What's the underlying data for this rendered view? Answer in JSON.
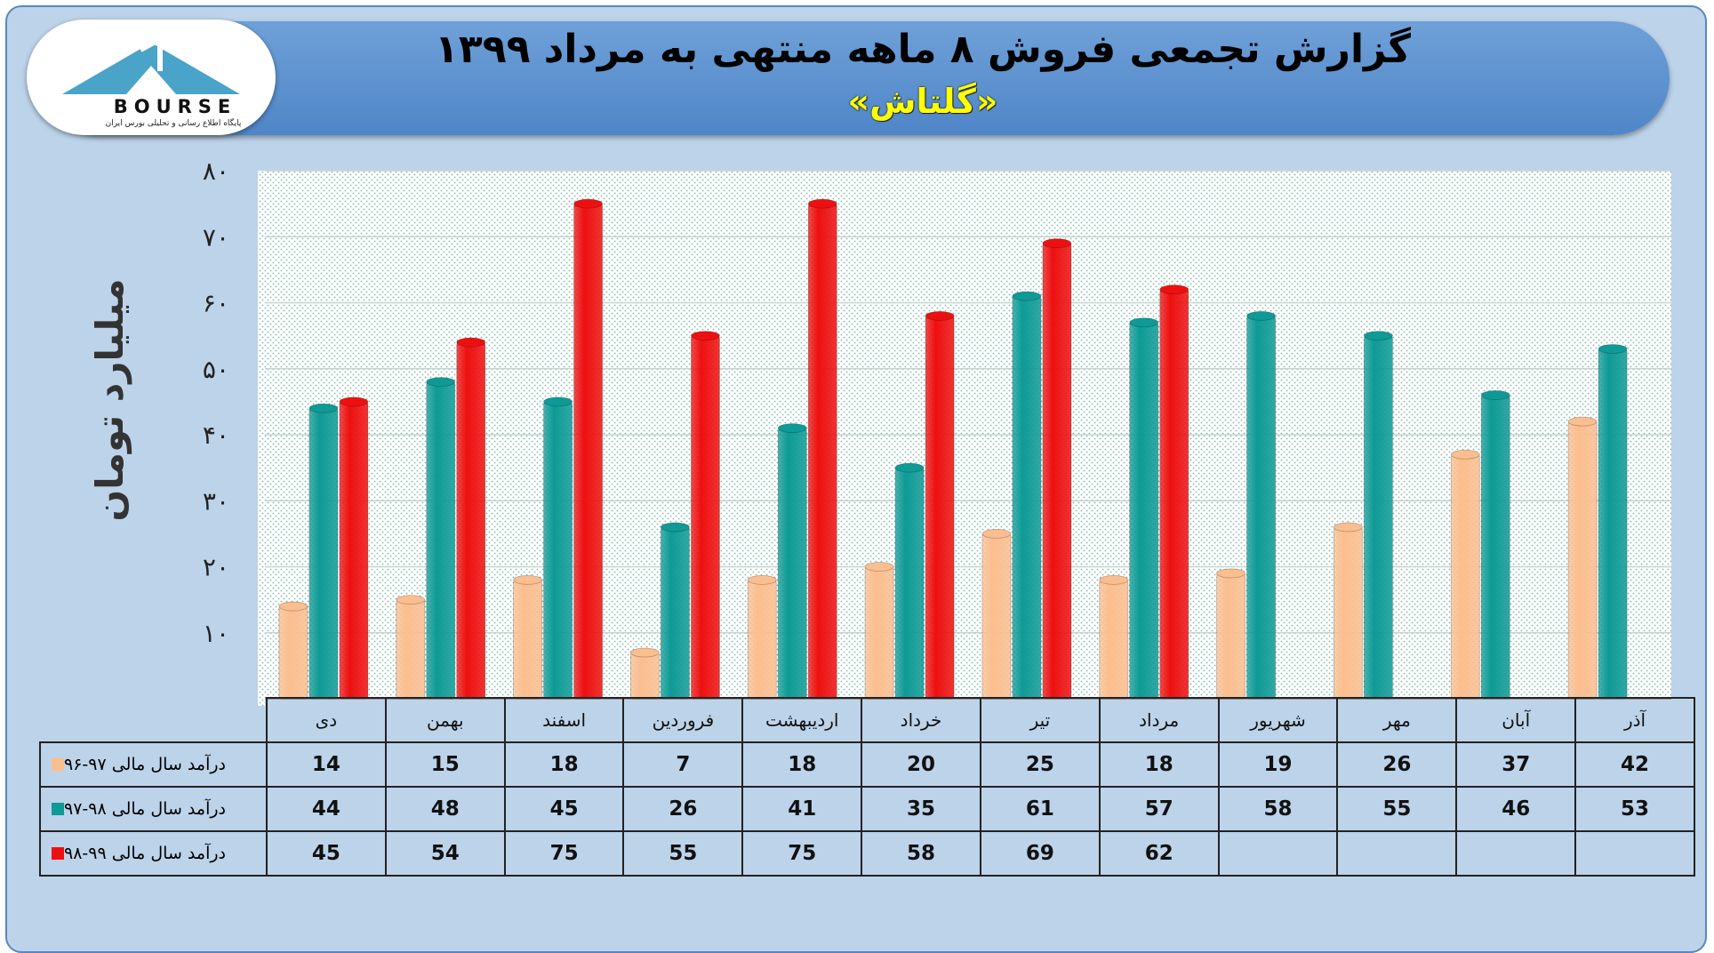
{
  "header": {
    "title": "گزارش تجمعی فروش ۸ ماهه منتهی به مرداد ۱۳۹۹",
    "subtitle": "«گلتاش»",
    "logo_text": "BOURSE",
    "logo_caption": "پایگاه اطلاع رسانی و تحلیلی بورس ایران"
  },
  "chart_data": {
    "type": "bar",
    "ylabel": "میلیارد تومان",
    "ylim": [
      0,
      80
    ],
    "yticks": [
      "۱۰",
      "۲۰",
      "۳۰",
      "۴۰",
      "۵۰",
      "۶۰",
      "۷۰",
      "۸۰"
    ],
    "ytick_values": [
      10,
      20,
      30,
      40,
      50,
      60,
      70,
      80
    ],
    "grid": true,
    "categories": [
      "دی",
      "بهمن",
      "اسفند",
      "فروردین",
      "اردیبهشت",
      "خرداد",
      "تیر",
      "مرداد",
      "شهریور",
      "مهر",
      "آبان",
      "آذر"
    ],
    "series": [
      {
        "name": "درآمد سال مالی ۹۷-۹۶",
        "color": "#fbbe8f",
        "values": [
          14,
          15,
          18,
          7,
          18,
          20,
          25,
          18,
          19,
          26,
          37,
          42
        ]
      },
      {
        "name": "درآمد سال مالی ۹۸-۹۷",
        "color": "#0e9a96",
        "values": [
          44,
          48,
          45,
          26,
          41,
          35,
          61,
          57,
          58,
          55,
          46,
          53
        ]
      },
      {
        "name": "درآمد سال مالی ۹۹-۹۸",
        "color": "#ee1010",
        "values": [
          45,
          54,
          75,
          55,
          75,
          58,
          69,
          62,
          null,
          null,
          null,
          null
        ]
      }
    ]
  }
}
